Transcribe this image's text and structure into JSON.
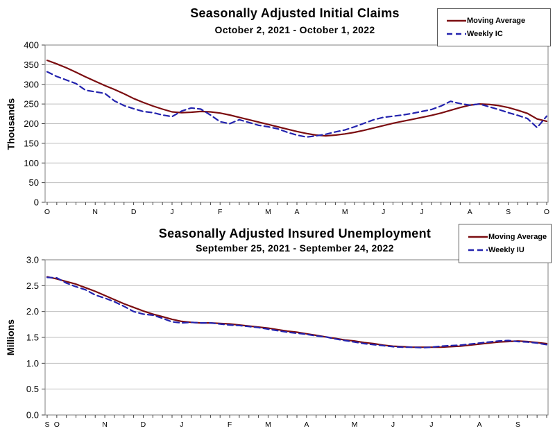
{
  "report": {
    "background": "#ffffff",
    "grid_color": "#bfbfbf",
    "frame_color": "#7f7f7f"
  },
  "chart_data": [
    {
      "type": "line",
      "title": "Seasonally Adjusted Initial Claims",
      "subtitle": "October 2, 2021 - October 1, 2022",
      "ylabel": "Thousands",
      "ylim": [
        0,
        400
      ],
      "yticks": [
        0,
        50,
        100,
        150,
        200,
        250,
        300,
        350,
        400
      ],
      "ytick_decimals": 0,
      "grid": "horizontal gridlines on, framed plot",
      "legend_position": "top-right",
      "x_tick_unit": "week (53 weekly ticks)",
      "month_ticks": [
        {
          "label": "O",
          "i": 0
        },
        {
          "label": "N",
          "i": 5
        },
        {
          "label": "D",
          "i": 9
        },
        {
          "label": "J",
          "i": 13
        },
        {
          "label": "F",
          "i": 18
        },
        {
          "label": "M",
          "i": 23
        },
        {
          "label": "A",
          "i": 26
        },
        {
          "label": "M",
          "i": 31
        },
        {
          "label": "J",
          "i": 35
        },
        {
          "label": "J",
          "i": 39
        },
        {
          "label": "A",
          "i": 44
        },
        {
          "label": "S",
          "i": 48
        },
        {
          "label": "O",
          "i": 52
        }
      ],
      "series": [
        {
          "name": "Moving Average",
          "color": "#7b0d10",
          "dash": "solid",
          "values": [
            361,
            352,
            342,
            331,
            319,
            308,
            297,
            287,
            276,
            264,
            254,
            245,
            237,
            230,
            228,
            229,
            231,
            230,
            227,
            222,
            216,
            210,
            204,
            198,
            192,
            186,
            180,
            175,
            171,
            169,
            171,
            174,
            178,
            183,
            189,
            195,
            201,
            206,
            211,
            216,
            221,
            227,
            234,
            241,
            247,
            250,
            249,
            246,
            241,
            234,
            226,
            212,
            206
          ]
        },
        {
          "name": "Weekly IC",
          "color": "#2323ae",
          "dash": "dashed",
          "values": [
            332,
            320,
            311,
            302,
            285,
            281,
            277,
            258,
            246,
            238,
            231,
            228,
            222,
            218,
            232,
            240,
            237,
            222,
            205,
            200,
            210,
            203,
            196,
            192,
            187,
            178,
            171,
            166,
            169,
            173,
            179,
            184,
            192,
            201,
            210,
            216,
            219,
            222,
            226,
            231,
            236,
            245,
            257,
            251,
            247,
            250,
            243,
            236,
            228,
            221,
            213,
            190,
            219
          ]
        }
      ]
    },
    {
      "type": "line",
      "title": "Seasonally Adjusted Insured Unemployment",
      "subtitle": "September 25, 2021 - September 24, 2022",
      "ylabel": "Millions",
      "ylim": [
        0,
        3
      ],
      "yticks": [
        0,
        0.5,
        1,
        1.5,
        2,
        2.5,
        3
      ],
      "ytick_decimals": 1,
      "grid": "horizontal gridlines on, framed plot",
      "legend_position": "top-right",
      "x_tick_unit": "week (53 weekly ticks)",
      "month_ticks": [
        {
          "label": "S",
          "i": 0
        },
        {
          "label": "O",
          "i": 1
        },
        {
          "label": "N",
          "i": 6
        },
        {
          "label": "D",
          "i": 10
        },
        {
          "label": "J",
          "i": 14
        },
        {
          "label": "F",
          "i": 19
        },
        {
          "label": "M",
          "i": 23
        },
        {
          "label": "A",
          "i": 27
        },
        {
          "label": "M",
          "i": 32
        },
        {
          "label": "J",
          "i": 36
        },
        {
          "label": "J",
          "i": 40
        },
        {
          "label": "A",
          "i": 45
        },
        {
          "label": "S",
          "i": 49
        }
      ],
      "series": [
        {
          "name": "Moving Average",
          "color": "#7b0d10",
          "dash": "solid",
          "values": [
            2.67,
            2.63,
            2.58,
            2.53,
            2.46,
            2.39,
            2.31,
            2.23,
            2.15,
            2.08,
            2.01,
            1.95,
            1.9,
            1.85,
            1.81,
            1.79,
            1.78,
            1.78,
            1.77,
            1.76,
            1.74,
            1.72,
            1.7,
            1.68,
            1.65,
            1.62,
            1.6,
            1.57,
            1.54,
            1.51,
            1.48,
            1.45,
            1.43,
            1.4,
            1.38,
            1.35,
            1.33,
            1.32,
            1.31,
            1.31,
            1.31,
            1.31,
            1.32,
            1.33,
            1.35,
            1.37,
            1.39,
            1.41,
            1.42,
            1.43,
            1.42,
            1.4,
            1.38
          ]
        },
        {
          "name": "Weekly IU",
          "color": "#2323ae",
          "dash": "dashed",
          "values": [
            2.66,
            2.65,
            2.55,
            2.48,
            2.42,
            2.32,
            2.26,
            2.19,
            2.1,
            2.0,
            1.95,
            1.93,
            1.87,
            1.8,
            1.78,
            1.79,
            1.78,
            1.78,
            1.76,
            1.74,
            1.73,
            1.71,
            1.69,
            1.66,
            1.63,
            1.6,
            1.58,
            1.56,
            1.53,
            1.51,
            1.47,
            1.44,
            1.41,
            1.38,
            1.36,
            1.34,
            1.32,
            1.31,
            1.31,
            1.3,
            1.31,
            1.33,
            1.34,
            1.35,
            1.37,
            1.39,
            1.41,
            1.43,
            1.44,
            1.42,
            1.41,
            1.39,
            1.36
          ]
        }
      ]
    }
  ]
}
